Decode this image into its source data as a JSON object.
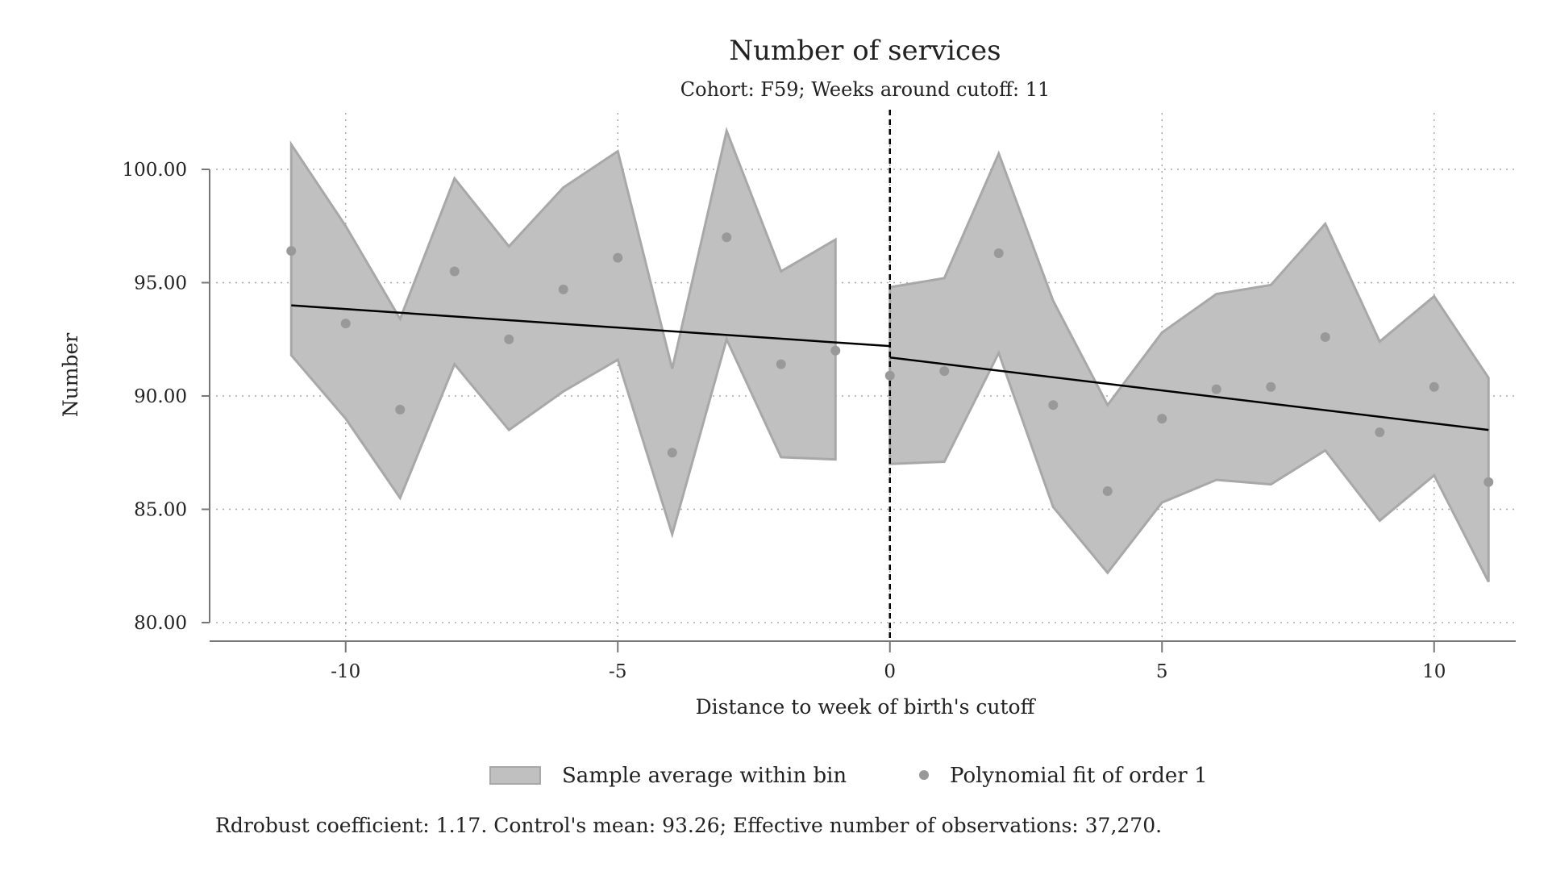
{
  "chart_data": {
    "type": "line",
    "title": "Number of services",
    "subtitle": "Cohort: F59; Weeks around cutoff: 11",
    "xlabel": "Distance to week of birth's cutoff",
    "ylabel": "Number",
    "xlim": [
      -12.5,
      11.5
    ],
    "ylim": [
      80,
      100
    ],
    "x_ticks": [
      -10,
      -5,
      0,
      5,
      10
    ],
    "x_tick_labels": [
      "-10",
      "-5",
      "0",
      "5",
      "10"
    ],
    "y_ticks": [
      80,
      85,
      90,
      95,
      100
    ],
    "y_tick_labels": [
      "80.00",
      "85.00",
      "90.00",
      "95.00",
      "100.00"
    ],
    "grid": true,
    "cutoff_x": 0,
    "legend": {
      "placement": "bottom",
      "band_label": "Sample average within bin",
      "points_label": "Polynomial fit of order 1"
    },
    "note": "Rdrobust coefficient: 1.17. Control's mean: 93.26; Effective number of observations: 37,270.",
    "colors": {
      "band_fill": "#c0c0c0",
      "band_stroke": "#a8a8a8",
      "points": "#999999",
      "fit_line": "#000000",
      "cutoff_line": "#000000",
      "grid": "#aaaaaa",
      "axis": "#777777"
    },
    "points": {
      "x": [
        -11,
        -10,
        -9,
        -8,
        -7,
        -6,
        -5,
        -4,
        -3,
        -2,
        -1,
        0,
        1,
        2,
        3,
        4,
        5,
        6,
        7,
        8,
        9,
        10,
        11
      ],
      "y": [
        96.4,
        93.2,
        89.4,
        95.5,
        92.5,
        94.7,
        96.1,
        87.5,
        97.0,
        91.4,
        92.0,
        90.9,
        91.1,
        96.3,
        89.6,
        85.8,
        89.0,
        90.3,
        90.4,
        92.6,
        88.4,
        90.4,
        86.2
      ]
    },
    "bands": [
      {
        "x": [
          -11,
          -10,
          -9,
          -8,
          -7,
          -6,
          -5,
          -4,
          -3,
          -2,
          -1
        ],
        "upper": [
          101.1,
          97.5,
          93.4,
          99.6,
          96.6,
          99.2,
          100.8,
          91.2,
          101.7,
          95.5,
          96.9
        ],
        "lower": [
          91.8,
          89.0,
          85.5,
          91.4,
          88.5,
          90.2,
          91.6,
          83.9,
          92.5,
          87.3,
          87.2
        ]
      },
      {
        "x": [
          0,
          1,
          2,
          3,
          4,
          5,
          6,
          7,
          8,
          9,
          10,
          11
        ],
        "upper": [
          94.8,
          95.2,
          100.7,
          94.2,
          89.6,
          92.8,
          94.5,
          94.9,
          97.6,
          92.4,
          94.4,
          90.8
        ],
        "lower": [
          87.0,
          87.1,
          91.9,
          85.1,
          82.2,
          85.3,
          86.3,
          86.1,
          87.6,
          84.5,
          86.5,
          81.8
        ]
      }
    ],
    "fits": [
      {
        "x": [
          -11,
          0
        ],
        "y": [
          94.0,
          92.2
        ]
      },
      {
        "x": [
          0,
          11
        ],
        "y": [
          91.7,
          88.5
        ]
      }
    ]
  }
}
